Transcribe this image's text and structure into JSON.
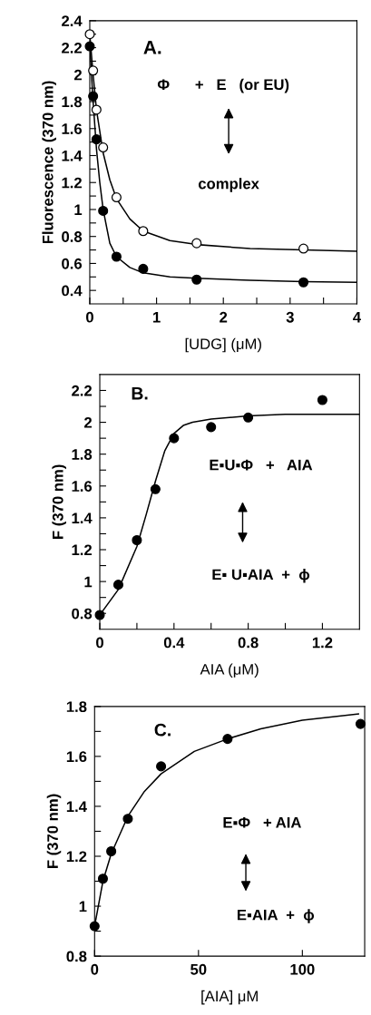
{
  "chart_data": [
    {
      "type": "scatter",
      "xlabel": "[UDG] (μM)",
      "ylabel": "Fluorescence (370 nm)",
      "xlim": [
        0,
        4
      ],
      "ylim": [
        0.3,
        2.4
      ],
      "xticks": [
        0,
        {
          "value": 0.5,
          "label": null
        },
        1,
        {
          "value": 1.5,
          "label": null
        },
        2,
        {
          "value": 2.5,
          "label": null
        },
        3,
        {
          "value": 3.5,
          "label": null
        },
        4
      ],
      "yticks": [
        0.4,
        {
          "value": 0.5,
          "label": null
        },
        0.6,
        {
          "value": 0.7,
          "label": null
        },
        0.8,
        {
          "value": 0.9,
          "label": null
        },
        1,
        {
          "value": 1.1,
          "label": null
        },
        1.2,
        {
          "value": 1.3,
          "label": null
        },
        1.4,
        {
          "value": 1.5,
          "label": null
        },
        1.6,
        {
          "value": 1.7,
          "label": null
        },
        1.8,
        {
          "value": 1.9,
          "label": null
        },
        2,
        {
          "value": 2.1,
          "label": null
        },
        2.2,
        {
          "value": 2.3,
          "label": null
        },
        2.4
      ],
      "marker": "circle",
      "grid": false,
      "legend": false,
      "annotations": [
        "A.",
        "Φ      +   E   (or EU)",
        "complex"
      ],
      "series": [
        {
          "type": "line",
          "marker": "none",
          "color": "#000000",
          "x": [
            0,
            0.05,
            0.1,
            0.2,
            0.3,
            0.4,
            0.6,
            0.8,
            1.2,
            1.6,
            2.4,
            3.2,
            4
          ],
          "values": [
            2.3,
            2.0,
            1.74,
            1.42,
            1.22,
            1.08,
            0.93,
            0.84,
            0.77,
            0.74,
            0.71,
            0.7,
            0.69
          ]
        },
        {
          "type": "line",
          "marker": "none",
          "color": "#000000",
          "x": [
            0,
            0.05,
            0.1,
            0.15,
            0.2,
            0.3,
            0.4,
            0.6,
            0.8,
            1.2,
            1.6,
            2.4,
            3.2,
            4
          ],
          "values": [
            2.21,
            1.8,
            1.45,
            1.2,
            1.0,
            0.75,
            0.65,
            0.57,
            0.53,
            0.5,
            0.49,
            0.475,
            0.465,
            0.46
          ]
        },
        {
          "color": "#ffffff",
          "x": [
            0,
            0.05,
            0.1,
            0.2,
            0.4,
            0.8,
            1.6,
            3.2
          ],
          "values": [
            2.3,
            2.03,
            1.74,
            1.46,
            1.09,
            0.84,
            0.75,
            0.71
          ]
        },
        {
          "color": "#000000",
          "x": [
            0,
            0.05,
            0.1,
            0.2,
            0.4,
            0.8,
            1.6,
            3.2
          ],
          "values": [
            2.21,
            1.84,
            1.52,
            0.99,
            0.65,
            0.56,
            0.48,
            0.46
          ]
        }
      ]
    },
    {
      "type": "scatter",
      "xlabel": "AIA (μM)",
      "ylabel": "F (370 nm)",
      "xlim": [
        0,
        1.4
      ],
      "ylim": [
        0.7,
        2.3
      ],
      "xticks": [
        0,
        {
          "value": 0.2,
          "label": null
        },
        0.4,
        {
          "value": 0.6,
          "label": null
        },
        0.8,
        {
          "value": 1.0,
          "label": null
        },
        1.2
      ],
      "yticks": [
        0.8,
        {
          "value": 0.9,
          "label": null
        },
        1,
        {
          "value": 1.1,
          "label": null
        },
        1.2,
        {
          "value": 1.3,
          "label": null
        },
        1.4,
        {
          "value": 1.5,
          "label": null
        },
        1.6,
        {
          "value": 1.7,
          "label": null
        },
        1.8,
        {
          "value": 1.9,
          "label": null
        },
        2,
        {
          "value": 2.1,
          "label": null
        },
        2.2
      ],
      "marker": "circle",
      "grid": false,
      "legend": false,
      "annotations": [
        "B.",
        "E▪U▪Φ   +   AIA",
        "E▪ U▪AIA  +  ϕ"
      ],
      "series": [
        {
          "type": "line",
          "marker": "none",
          "color": "#000000",
          "x": [
            0,
            0.1,
            0.2,
            0.25,
            0.3,
            0.35,
            0.4,
            0.45,
            0.5,
            0.6,
            0.8,
            1.0,
            1.4
          ],
          "values": [
            0.79,
            0.95,
            1.22,
            1.42,
            1.63,
            1.82,
            1.93,
            1.98,
            2.0,
            2.02,
            2.04,
            2.05,
            2.05
          ]
        },
        {
          "color": "#000000",
          "x": [
            0,
            0.1,
            0.2,
            0.3,
            0.4,
            0.6,
            0.8,
            1.2
          ],
          "values": [
            0.79,
            0.98,
            1.26,
            1.58,
            1.9,
            1.97,
            2.03,
            2.14
          ]
        }
      ]
    },
    {
      "type": "scatter",
      "xlabel": "[AIA] μM",
      "ylabel": "F (370 nm)",
      "xlim": [
        0,
        130
      ],
      "ylim": [
        0.8,
        1.8
      ],
      "xticks": [
        0,
        50,
        100
      ],
      "yticks": [
        0.8,
        {
          "value": 0.9,
          "label": null
        },
        1,
        {
          "value": 1.1,
          "label": null
        },
        1.2,
        {
          "value": 1.3,
          "label": null
        },
        1.4,
        {
          "value": 1.5,
          "label": null
        },
        1.6,
        {
          "value": 1.7,
          "label": null
        },
        1.8
      ],
      "marker": "circle",
      "grid": false,
      "legend": false,
      "annotations": [
        "C.",
        "E▪Φ   + AIA",
        "E▪AIA  +  ϕ"
      ],
      "series": [
        {
          "type": "line",
          "marker": "none",
          "color": "#000000",
          "x": [
            0,
            4,
            8,
            16,
            24,
            32,
            48,
            64,
            80,
            100,
            127
          ],
          "values": [
            0.92,
            1.1,
            1.21,
            1.36,
            1.46,
            1.53,
            1.62,
            1.67,
            1.71,
            1.745,
            1.77
          ]
        },
        {
          "color": "#000000",
          "x": [
            0,
            4,
            8,
            16,
            32,
            64,
            128
          ],
          "values": [
            0.92,
            1.11,
            1.22,
            1.35,
            1.56,
            1.67,
            1.73
          ]
        }
      ]
    }
  ]
}
